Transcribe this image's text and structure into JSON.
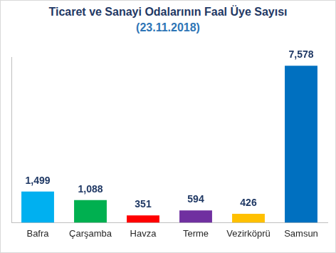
{
  "chart_data": {
    "type": "bar",
    "title": "Ticaret ve Sanayi Odalarının Faal Üye Sayısı",
    "subtitle": "(23.11.2018)",
    "categories": [
      "Bafra",
      "Çarşamba",
      "Havza",
      "Terme",
      "Vezirköprü",
      "Samsun"
    ],
    "values": [
      1499,
      1088,
      351,
      594,
      426,
      7578
    ],
    "value_labels": [
      "1,499",
      "1,088",
      "351",
      "594",
      "426",
      "7,578"
    ],
    "colors": [
      "#00b0f0",
      "#00b050",
      "#ff0000",
      "#7030a0",
      "#ffc000",
      "#0070c0"
    ],
    "ylim": [
      0,
      8000
    ],
    "grid": false,
    "data_labels": true,
    "tick_labels": "x"
  }
}
